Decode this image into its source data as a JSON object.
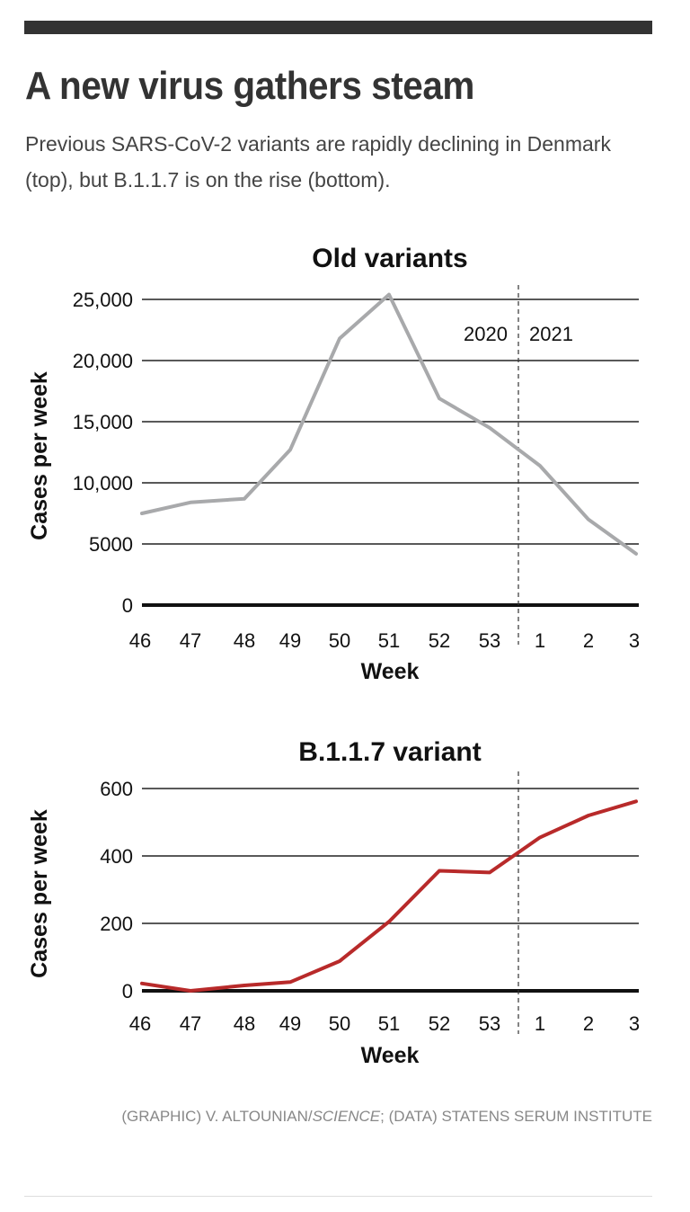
{
  "header": {
    "title": "A new virus gathers steam",
    "subtitle": "Previous SARS-CoV-2 variants are rapidly declining in Denmark (top), but B.1.1.7 is on the rise (bottom)."
  },
  "credit": {
    "graphic_prefix": "(GRAPHIC) V. ALTOUNIAN/",
    "graphic_outlet": "SCIENCE",
    "data_text": "; (DATA) STATENS SERUM INSTITUTE"
  },
  "colors": {
    "old_line": "#a8a9ab",
    "b117_line": "#b82a2a",
    "grid": "#222222",
    "text": "#111111"
  },
  "chart_data": [
    {
      "type": "line",
      "title": "Old variants",
      "xlabel": "Week",
      "ylabel": "Cases per week",
      "categories": [
        "46",
        "47",
        "48",
        "49",
        "50",
        "51",
        "52",
        "53",
        "1",
        "2",
        "3"
      ],
      "values": [
        7500,
        8400,
        8700,
        12700,
        21800,
        25400,
        16900,
        14500,
        11400,
        7000,
        4200
      ],
      "yticks": [
        0,
        5000,
        10000,
        15000,
        20000,
        25000
      ],
      "ytick_labels": [
        "0",
        "5000",
        "10,000",
        "15,000",
        "20,000",
        "25,000"
      ],
      "ylim": [
        0,
        25000
      ],
      "grid": true,
      "year_labels": [
        "2020",
        "2021"
      ],
      "year_divider_between": [
        "53",
        "1"
      ]
    },
    {
      "type": "line",
      "title": "B.1.1.7 variant",
      "xlabel": "Week",
      "ylabel": "Cases per week",
      "categories": [
        "46",
        "47",
        "48",
        "49",
        "50",
        "51",
        "52",
        "53",
        "1",
        "2",
        "3"
      ],
      "values": [
        22,
        0,
        16,
        26,
        88,
        205,
        356,
        351,
        455,
        520,
        562
      ],
      "yticks": [
        0,
        200,
        400,
        600
      ],
      "ytick_labels": [
        "0",
        "200",
        "400",
        "600"
      ],
      "ylim": [
        0,
        600
      ],
      "grid": true,
      "year_divider_between": [
        "53",
        "1"
      ]
    }
  ]
}
